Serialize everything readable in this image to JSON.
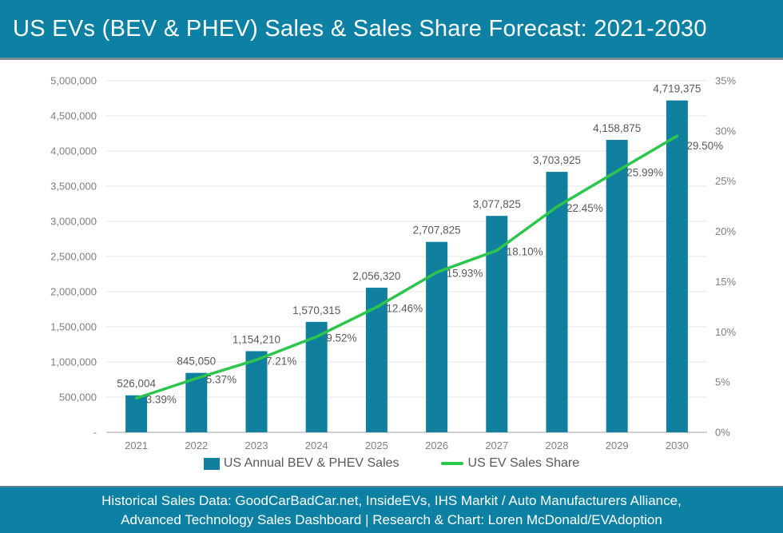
{
  "colors": {
    "teal": "#0d81a3",
    "bar": "#11809f",
    "green": "#2bc64b",
    "grid": "#ebebeb",
    "axis_line": "#bfbfbf",
    "tick_text": "#7f7f7f",
    "label_text": "#595959",
    "header_text": "#ffffff"
  },
  "header": {
    "title": "US EVs (BEV & PHEV) Sales & Sales Share Forecast: 2021-2030"
  },
  "legend": {
    "items": [
      {
        "label": "US Annual BEV & PHEV Sales",
        "marker": "bar-swatch"
      },
      {
        "label": "US EV Sales Share",
        "marker": "line-swatch"
      }
    ]
  },
  "footer": {
    "line1": "Historical Sales Data: GoodCarBadCar.net, InsideEVs, IHS Markit / Auto Manufacturers Alliance,",
    "line2": "Advanced Technology Sales Dashboard | Research & Chart: Loren McDonald/EVAdoption"
  },
  "chart_data": {
    "type": "bar",
    "title": "US EVs (BEV & PHEV) Sales & Sales Share Forecast: 2021-2030",
    "categories": [
      "2021",
      "2022",
      "2023",
      "2024",
      "2025",
      "2026",
      "2027",
      "2028",
      "2029",
      "2030"
    ],
    "series": [
      {
        "name": "US Annual BEV & PHEV Sales",
        "type": "bar",
        "axis": "left",
        "values": [
          526004,
          845050,
          1154210,
          1570315,
          2056320,
          2707825,
          3077825,
          3703925,
          4158875,
          4719375
        ],
        "data_labels": [
          "526,004",
          "845,050",
          "1,154,210",
          "1,570,315",
          "2,056,320",
          "2,707,825",
          "3,077,825",
          "3,703,925",
          "4,158,875",
          "4,719,375"
        ]
      },
      {
        "name": "US EV Sales Share",
        "type": "line",
        "axis": "right",
        "values": [
          3.39,
          5.37,
          7.21,
          9.52,
          12.46,
          15.93,
          18.1,
          22.45,
          25.99,
          29.5
        ],
        "data_labels": [
          "3.39%",
          "5.37%",
          "7.21%",
          "9.52%",
          "12.46%",
          "15.93%",
          "18.10%",
          "22.45%",
          "25.99%",
          "29.50%"
        ]
      }
    ],
    "left_axis": {
      "min": 0,
      "max": 5000000,
      "tick_labels_top_to_bottom": [
        "5,000,000",
        "4,500,000",
        "4,000,000",
        "3,500,000",
        "3,000,000",
        "2,500,000",
        "2,000,000",
        "1,500,000",
        "1,000,000",
        "500,000",
        "-"
      ]
    },
    "right_axis": {
      "min": 0,
      "max": 35,
      "tick_labels_top_to_bottom": [
        "35%",
        "30%",
        "25%",
        "20%",
        "15%",
        "10%",
        "5%",
        "0%"
      ]
    },
    "grid": "horizontal",
    "legend_position": "bottom"
  }
}
